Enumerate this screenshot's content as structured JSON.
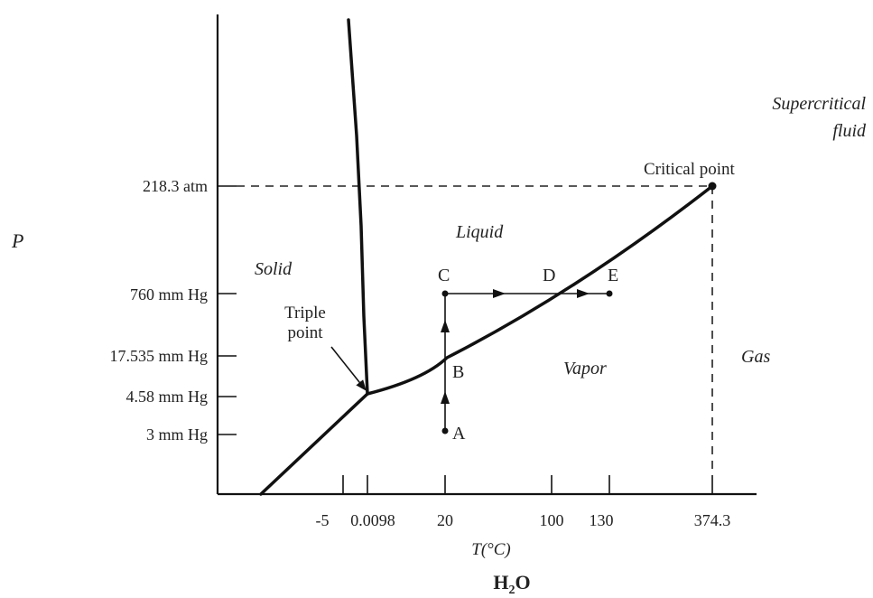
{
  "axes": {
    "y_label": "P",
    "x_label": "T(°C)",
    "y_ticks": [
      "218.3 atm",
      "760 mm Hg",
      "17.535 mm Hg",
      "4.58 mm Hg",
      "3 mm Hg"
    ],
    "x_ticks": [
      "-5",
      "0.0098",
      "20",
      "100",
      "130",
      "374.3"
    ]
  },
  "substance": {
    "main": "H",
    "sub": "2",
    "tail": "O"
  },
  "regions": {
    "solid": "Solid",
    "liquid": "Liquid",
    "vapor": "Vapor",
    "gas": "Gas",
    "supercritical_line1": "Supercritical",
    "supercritical_line2": "fluid"
  },
  "annotations": {
    "critical_point": "Critical point",
    "triple_point_line1": "Triple",
    "triple_point_line2": "point"
  },
  "points": [
    "A",
    "B",
    "C",
    "D",
    "E"
  ]
}
